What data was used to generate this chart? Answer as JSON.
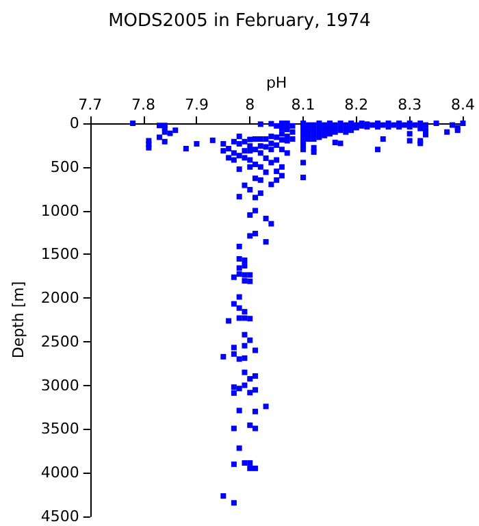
{
  "chart_data": {
    "type": "scatter",
    "title": "MODS2005 in February, 1974",
    "xlabel": "pH",
    "ylabel": "Depth [m]",
    "xlim": [
      7.7,
      8.4
    ],
    "xticks": [
      7.7,
      7.8,
      7.9,
      8,
      8.1,
      8.2,
      8.3,
      8.4
    ],
    "ylim": [
      4500,
      0
    ],
    "yticks": [
      0,
      500,
      1000,
      1500,
      2000,
      2500,
      3000,
      3500,
      4000,
      4500
    ],
    "marker": "square",
    "grid": false,
    "series": [
      {
        "color": "#0000ff",
        "x": [
          7.78,
          7.81,
          7.81,
          7.81,
          7.83,
          7.83,
          7.84,
          7.84,
          7.84,
          7.84,
          7.85,
          7.86,
          7.88,
          7.9,
          7.93,
          7.95,
          7.95,
          7.96,
          7.96,
          7.97,
          7.97,
          7.97,
          7.98,
          7.98,
          7.98,
          7.98,
          7.98,
          7.99,
          7.99,
          7.99,
          7.99,
          8.0,
          8.0,
          8.0,
          8.0,
          8.0,
          8.0,
          8.0,
          8.01,
          8.01,
          8.01,
          8.01,
          8.01,
          8.01,
          8.02,
          8.02,
          8.02,
          8.02,
          8.02,
          8.02,
          8.02,
          8.03,
          8.03,
          8.03,
          8.03,
          8.03,
          8.04,
          8.04,
          8.04,
          8.04,
          8.04,
          8.04,
          8.04,
          8.05,
          8.05,
          8.05,
          8.05,
          8.05,
          8.05,
          8.06,
          8.06,
          8.06,
          8.06,
          8.06,
          8.06,
          8.06,
          8.07,
          8.07,
          8.07,
          8.07,
          8.07,
          8.07,
          8.08,
          8.08,
          8.08,
          8.1,
          8.1,
          8.1,
          8.1,
          8.1,
          8.1,
          8.1,
          8.1,
          8.1,
          8.1,
          8.11,
          8.11,
          8.11,
          8.11,
          8.11,
          8.12,
          8.12,
          8.12,
          8.12,
          8.12,
          8.12,
          8.12,
          8.13,
          8.13,
          8.13,
          8.13,
          8.13,
          8.14,
          8.14,
          8.14,
          8.14,
          8.15,
          8.15,
          8.15,
          8.15,
          8.16,
          8.16,
          8.16,
          8.16,
          8.17,
          8.17,
          8.17,
          8.17,
          8.18,
          8.18,
          8.18,
          8.19,
          8.19,
          8.19,
          8.2,
          8.2,
          8.21,
          8.21,
          8.22,
          8.22,
          8.23,
          8.24,
          8.24,
          8.24,
          8.25,
          8.25,
          8.26,
          8.26,
          8.27,
          8.28,
          8.28,
          8.29,
          8.3,
          8.3,
          8.3,
          8.3,
          8.31,
          8.32,
          8.32,
          8.32,
          8.32,
          8.33,
          8.33,
          8.33,
          8.35,
          8.37,
          8.38,
          8.39,
          8.39,
          8.4,
          8.0,
          8.01,
          8.03,
          7.98,
          7.98,
          7.99,
          7.99,
          7.98,
          7.98,
          7.99,
          8.0,
          7.97,
          7.99,
          8.0,
          7.98,
          7.97,
          7.98,
          7.99,
          7.96,
          7.98,
          7.99,
          8.0,
          7.99,
          8.0,
          7.97,
          7.99,
          8.01,
          7.97,
          7.95,
          7.98,
          7.99,
          7.99,
          8.0,
          8.01,
          7.97,
          7.98,
          7.99,
          8.01,
          7.97,
          8.0,
          7.98,
          8.01,
          8.03,
          7.97,
          8.0,
          8.01,
          7.98,
          7.97,
          7.99,
          8.0,
          8.0,
          8.01,
          7.95,
          7.97
        ],
        "values": [
          0,
          200,
          240,
          280,
          25,
          160,
          25,
          50,
          100,
          210,
          115,
          80,
          290,
          235,
          195,
          235,
          315,
          290,
          395,
          210,
          340,
          420,
          150,
          235,
          370,
          525,
          840,
          210,
          315,
          395,
          710,
          185,
          260,
          315,
          420,
          500,
          760,
          1050,
          180,
          300,
          470,
          630,
          850,
          1000,
          10,
          180,
          260,
          340,
          500,
          650,
          800,
          180,
          270,
          400,
          560,
          1090,
          5,
          150,
          230,
          300,
          450,
          700,
          1150,
          30,
          160,
          250,
          420,
          550,
          650,
          0,
          60,
          120,
          190,
          300,
          500,
          600,
          0,
          30,
          70,
          150,
          200,
          340,
          30,
          100,
          180,
          0,
          40,
          80,
          120,
          160,
          200,
          250,
          300,
          450,
          620,
          20,
          60,
          100,
          140,
          180,
          20,
          60,
          100,
          140,
          180,
          280,
          330,
          0,
          40,
          80,
          120,
          160,
          20,
          60,
          100,
          140,
          0,
          40,
          80,
          120,
          20,
          60,
          100,
          220,
          0,
          40,
          80,
          230,
          20,
          60,
          100,
          0,
          40,
          80,
          20,
          50,
          0,
          30,
          10,
          40,
          20,
          0,
          40,
          300,
          20,
          180,
          0,
          40,
          20,
          0,
          40,
          20,
          0,
          40,
          120,
          200,
          20,
          0,
          60,
          200,
          230,
          20,
          80,
          130,
          0,
          100,
          20,
          50,
          80,
          0,
          1289,
          1262,
          1357,
          1410,
          1552,
          1568,
          1631,
          1657,
          1726,
          1736,
          1736,
          1762,
          1804,
          1809,
          1988,
          2067,
          2115,
          2157,
          2262,
          2230,
          2230,
          2236,
          2420,
          2483,
          2567,
          2546,
          2599,
          2641,
          2672,
          2699,
          2688,
          2851,
          2925,
          2893,
          3020,
          3036,
          2999,
          3052,
          3088,
          3083,
          3288,
          3299,
          3241,
          3493,
          3456,
          3493,
          3719,
          3903,
          3888,
          3888,
          3950,
          3950,
          4266,
          4345
        ]
      }
    ]
  }
}
